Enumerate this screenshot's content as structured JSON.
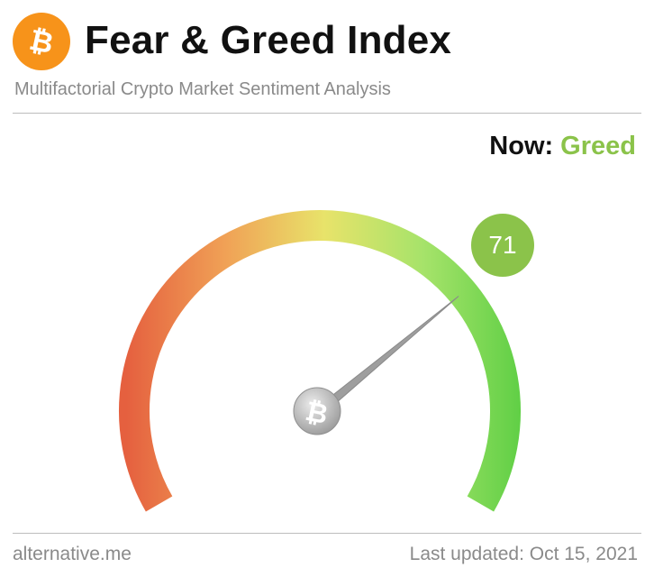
{
  "header": {
    "title": "Fear & Greed Index",
    "subtitle": "Multifactorial Crypto Market Sentiment Analysis",
    "logo_icon": "bitcoin-icon",
    "logo_color": "#f7931a"
  },
  "status": {
    "now_label": "Now:",
    "classification": "Greed",
    "classification_color": "#8bc34a"
  },
  "gauge": {
    "value": 71,
    "value_display": "71",
    "min": 0,
    "max": 100,
    "badge_color": "#8bc34a",
    "gradient_colors": [
      "#e5603f",
      "#f0a156",
      "#e8e36a",
      "#a6e36a",
      "#5fcf45"
    ],
    "needle_color": "#9e9e9e",
    "hub_icon": "bitcoin-icon"
  },
  "footer": {
    "source": "alternative.me",
    "updated": "Last updated: Oct 15, 2021"
  }
}
